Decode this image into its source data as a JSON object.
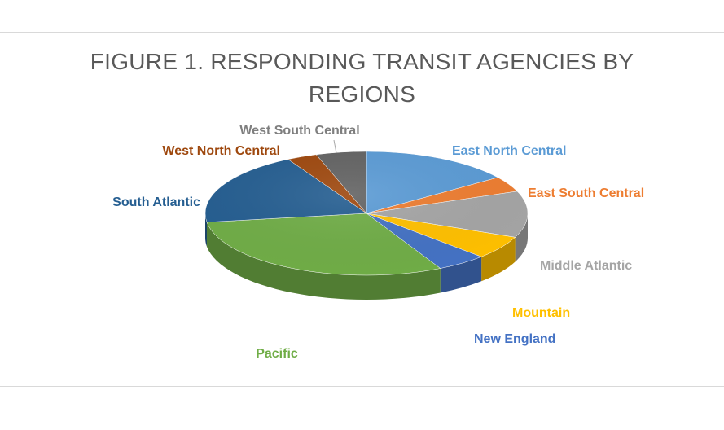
{
  "chart_data": {
    "type": "pie",
    "title_lines": [
      "FIGURE 1. RESPONDING TRANSIT AGENCIES BY",
      "REGIONS"
    ],
    "slices": [
      {
        "label": "East North Central",
        "value": 15,
        "color": "#5b9bd5",
        "label_color": "#5b9bd5"
      },
      {
        "label": "East South Central",
        "value": 4,
        "color": "#ed7d31",
        "label_color": "#ed7d31"
      },
      {
        "label": "Middle Atlantic",
        "value": 12,
        "color": "#a5a5a5",
        "label_color": "#a5a5a5"
      },
      {
        "label": "Mountain",
        "value": 6,
        "color": "#ffc000",
        "label_color": "#ffc000"
      },
      {
        "label": "New England",
        "value": 5,
        "color": "#4472c4",
        "label_color": "#4472c4"
      },
      {
        "label": "Pacific",
        "value": 30,
        "color": "#70ad47",
        "label_color": "#70ad47"
      },
      {
        "label": "South Atlantic",
        "value": 19,
        "color": "#255e91",
        "label_color": "#255e91"
      },
      {
        "label": "West North Central",
        "value": 3,
        "color": "#9e480e",
        "label_color": "#9e480e"
      },
      {
        "label": "West South Central",
        "value": 5,
        "color": "#636363",
        "label_color": "#7f7f7f"
      }
    ]
  }
}
